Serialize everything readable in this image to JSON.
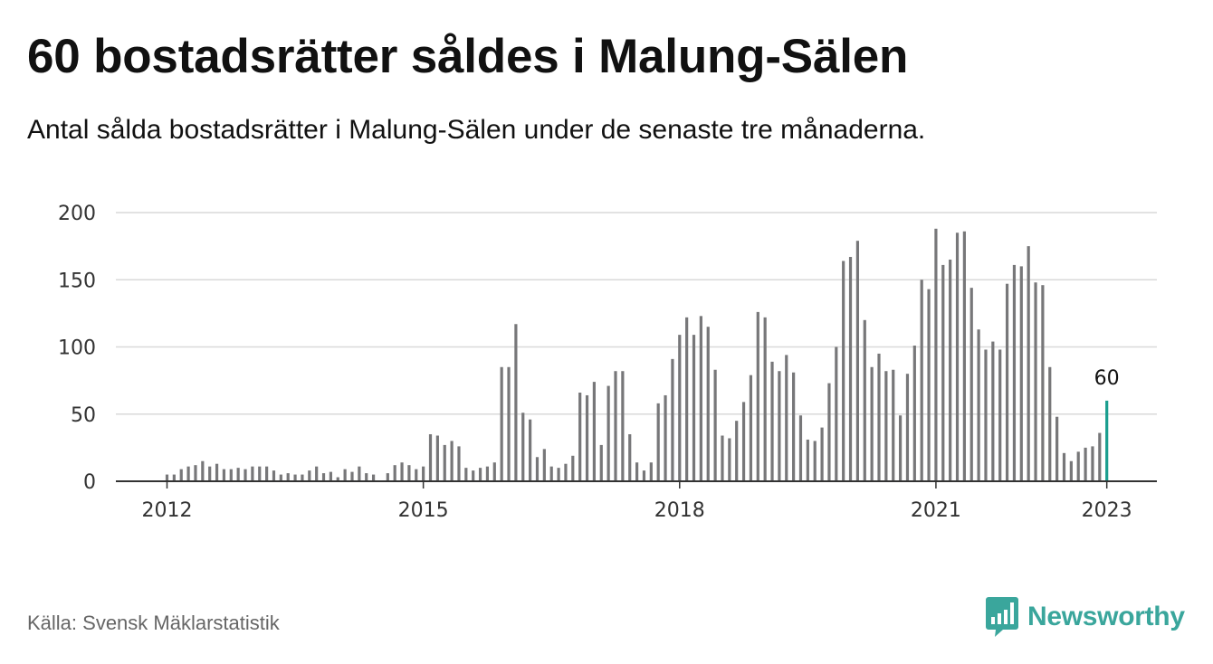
{
  "title": "60 bostadsrätter såldes i Malung-Sälen",
  "subtitle": "Antal sålda bostadsrätter i Malung-Sälen under de senaste tre månaderna.",
  "source": "Källa: Svensk Mäklarstatistik",
  "brand": {
    "name": "Newsworthy",
    "icon": "newsworthy-logo-icon",
    "color": "#3aa69c"
  },
  "colors": {
    "bar": "#777779",
    "highlight": "#1a9e8f",
    "grid": "#d9d9d9",
    "axis": "#333333"
  },
  "chart_data": {
    "type": "bar",
    "title": "60 bostadsrätter såldes i Malung-Sälen",
    "xlabel": "",
    "ylabel": "",
    "ylim": [
      0,
      200
    ],
    "yticks": [
      0,
      50,
      100,
      150,
      200
    ],
    "xticks": [
      "2012",
      "2015",
      "2018",
      "2021",
      "2023"
    ],
    "grid": true,
    "start": "2012-01",
    "end": "2023-01",
    "values": [
      5,
      5,
      9,
      11,
      12,
      15,
      11,
      13,
      9,
      9,
      10,
      9,
      11,
      11,
      11,
      8,
      5,
      6,
      5,
      5,
      8,
      11,
      6,
      7,
      3,
      9,
      7,
      11,
      6,
      5,
      0,
      6,
      12,
      14,
      12,
      9,
      11,
      35,
      34,
      27,
      30,
      26,
      10,
      8,
      10,
      11,
      14,
      85,
      85,
      117,
      51,
      46,
      18,
      24,
      11,
      10,
      13,
      19,
      66,
      64,
      74,
      27,
      71,
      82,
      82,
      35,
      14,
      8,
      14,
      58,
      64,
      91,
      109,
      122,
      109,
      123,
      115,
      83,
      34,
      32,
      45,
      59,
      79,
      126,
      122,
      89,
      82,
      94,
      81,
      49,
      31,
      30,
      40,
      73,
      100,
      164,
      167,
      179,
      120,
      85,
      95,
      82,
      83,
      49,
      80,
      101,
      150,
      143,
      188,
      161,
      165,
      185,
      186,
      144,
      113,
      98,
      104,
      98,
      147,
      161,
      160,
      175,
      148,
      146,
      85,
      48,
      21,
      15,
      22,
      25,
      26,
      36,
      60
    ],
    "highlight": {
      "label": "60",
      "value": 60
    }
  }
}
